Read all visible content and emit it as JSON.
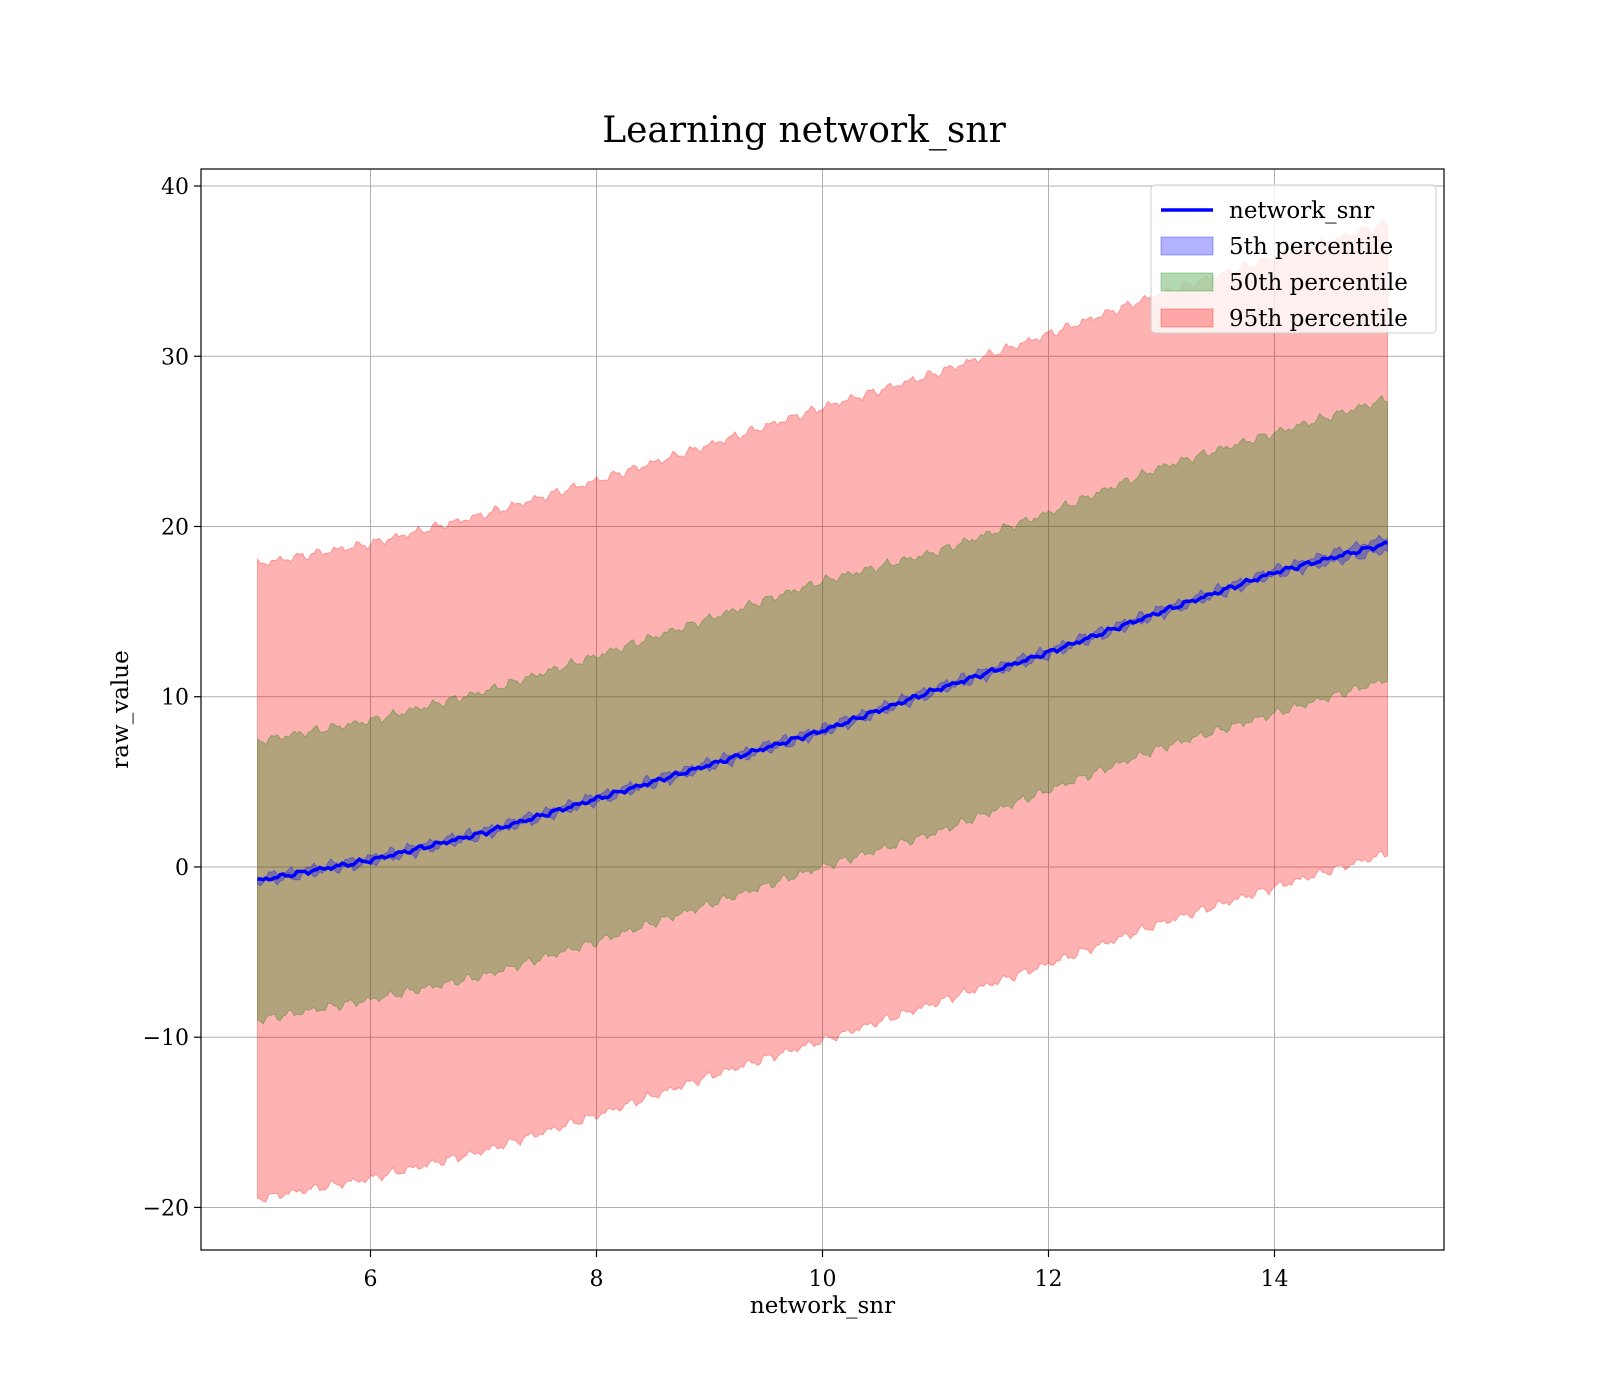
{
  "chart_data": {
    "type": "area",
    "title": "Learning network_snr",
    "xlabel": "network_snr",
    "ylabel": "raw_value",
    "xlim": [
      4.5,
      15.5
    ],
    "ylim": [
      -22.5,
      41
    ],
    "xticks": [
      6,
      8,
      10,
      12,
      14
    ],
    "yticks": [
      -20,
      -10,
      0,
      10,
      20,
      30,
      40
    ],
    "xtick_labels": [
      "6",
      "8",
      "10",
      "12",
      "14"
    ],
    "ytick_labels": [
      "−20",
      "−10",
      "0",
      "10",
      "20",
      "30",
      "40"
    ],
    "grid": true,
    "legend_position": "top-right",
    "x": [
      5,
      6,
      7,
      8,
      9,
      10,
      11,
      12,
      13,
      14,
      15
    ],
    "series": [
      {
        "name": "network_snr",
        "kind": "line",
        "color": "#0000ff",
        "values": [
          -0.8,
          0.4,
          2.0,
          4.0,
          6.0,
          8.0,
          10.4,
          12.6,
          15.0,
          17.3,
          19.0
        ]
      },
      {
        "name": "5th percentile",
        "kind": "band",
        "color": "#0000ff",
        "lower": [
          -1.0,
          0.2,
          1.8,
          3.8,
          5.8,
          7.8,
          10.2,
          12.4,
          14.8,
          17.1,
          18.6
        ],
        "upper": [
          -0.6,
          0.6,
          2.2,
          4.2,
          6.2,
          8.2,
          10.6,
          12.8,
          15.2,
          17.5,
          19.4
        ]
      },
      {
        "name": "50th percentile",
        "kind": "band",
        "color": "#008000",
        "lower": [
          -9.0,
          -7.8,
          -6.4,
          -4.4,
          -2.2,
          0.0,
          2.0,
          4.5,
          7.0,
          9.0,
          11.0
        ],
        "upper": [
          7.4,
          8.6,
          10.3,
          12.4,
          14.6,
          16.8,
          18.5,
          20.8,
          23.5,
          25.5,
          27.5
        ]
      },
      {
        "name": "95th percentile",
        "kind": "band",
        "color": "#ff0000",
        "lower": [
          -19.5,
          -18.3,
          -16.7,
          -14.6,
          -12.3,
          -10.2,
          -8.0,
          -5.7,
          -3.3,
          -1.2,
          0.8
        ],
        "upper": [
          17.8,
          19.0,
          20.7,
          22.7,
          24.8,
          27.0,
          29.0,
          31.3,
          33.7,
          35.8,
          37.8
        ]
      }
    ]
  },
  "colors": {
    "line": "#0000ff",
    "band_5th": "#0000ff",
    "band_50th": "#008000",
    "band_95th": "#ff0000"
  }
}
